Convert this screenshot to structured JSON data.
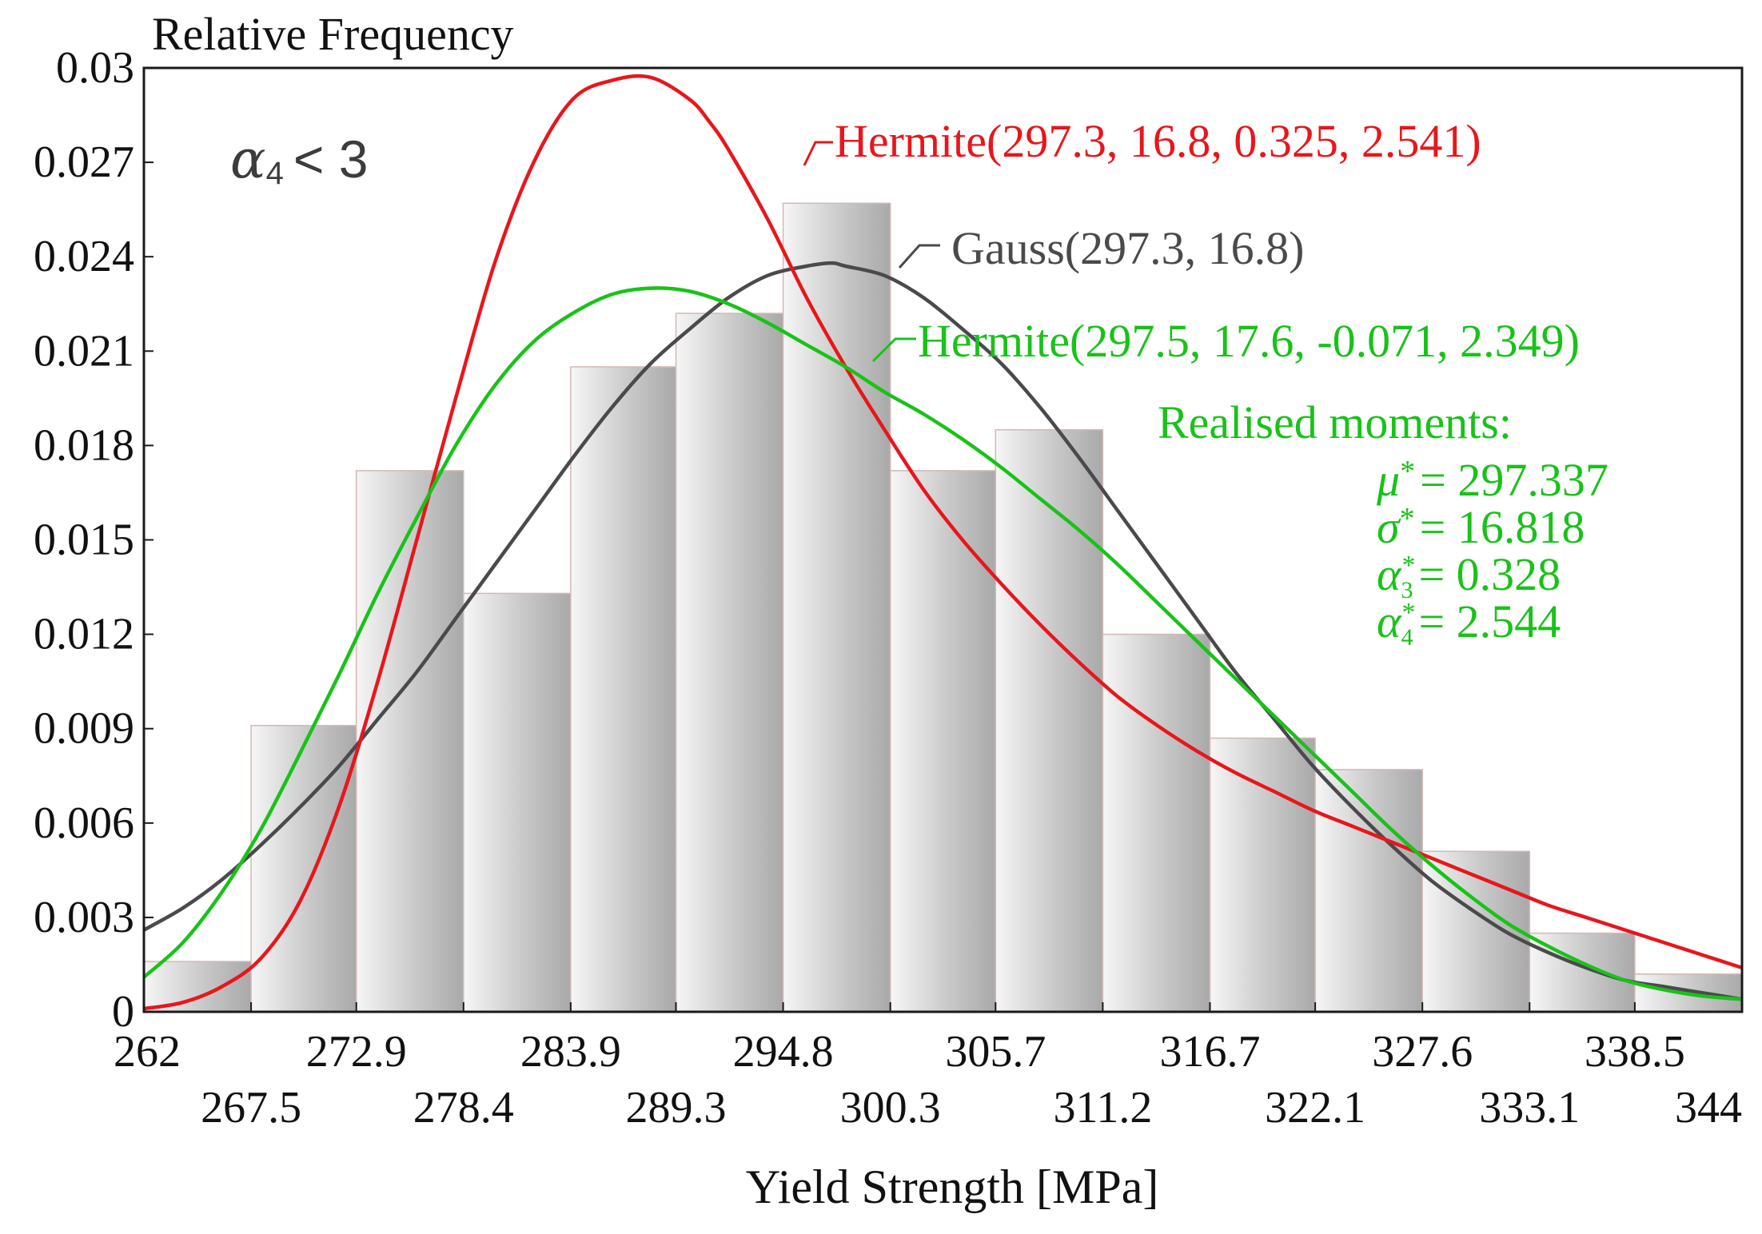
{
  "chart_data": {
    "type": "bar",
    "title": "",
    "ylabel": "Relative Frequency",
    "xlabel": "Yield Strength [MPa]",
    "xlim": [
      262,
      344
    ],
    "ylim": [
      0,
      0.03
    ],
    "y_ticks": [
      "0",
      "0.003",
      "0.006",
      "0.009",
      "0.012",
      "0.015",
      "0.018",
      "0.021",
      "0.024",
      "0.027",
      "0.03"
    ],
    "x_ticks_upper": [
      "262",
      "272.9",
      "283.9",
      "294.8",
      "305.7",
      "316.7",
      "327.6",
      "338.5"
    ],
    "x_ticks_lower": [
      "267.5",
      "278.4",
      "289.3",
      "300.3",
      "311.2",
      "322.1",
      "333.1",
      "344"
    ],
    "bin_edges": [
      262,
      267.5,
      272.9,
      278.4,
      283.9,
      289.3,
      294.8,
      300.3,
      305.7,
      311.2,
      316.7,
      322.1,
      327.6,
      333.1,
      338.5,
      344
    ],
    "bar_values": [
      0.0016,
      0.0091,
      0.0172,
      0.0133,
      0.0205,
      0.0222,
      0.0257,
      0.0172,
      0.0185,
      0.012,
      0.0087,
      0.0077,
      0.0051,
      0.0025,
      0.0012
    ],
    "series": [
      {
        "name": "Hermite(297.3, 16.8, 0.325, 2.541)",
        "color": "#e8161c",
        "x": [
          262,
          264,
          266,
          268,
          270,
          272,
          274,
          276,
          278,
          280,
          282,
          284,
          286,
          288,
          290,
          291,
          292,
          294,
          296,
          298,
          300,
          302,
          304,
          306,
          308,
          310,
          312,
          314,
          316,
          318,
          320,
          322,
          324,
          326,
          328,
          330,
          332,
          334,
          336,
          338,
          340,
          342,
          344
        ],
        "y": [
          0.0001,
          0.0003,
          0.0008,
          0.0017,
          0.0035,
          0.0065,
          0.0105,
          0.015,
          0.0195,
          0.0238,
          0.027,
          0.029,
          0.0296,
          0.0297,
          0.029,
          0.0283,
          0.0274,
          0.0252,
          0.0227,
          0.0205,
          0.0185,
          0.0166,
          0.015,
          0.0136,
          0.0123,
          0.0111,
          0.01,
          0.0091,
          0.0083,
          0.0076,
          0.007,
          0.0064,
          0.0059,
          0.0054,
          0.0049,
          0.0044,
          0.0039,
          0.0034,
          0.003,
          0.0026,
          0.0022,
          0.0018,
          0.0014
        ]
      },
      {
        "name": "Gauss(297.3, 16.8)",
        "color": "#4a4a4c",
        "x": [
          262,
          264,
          266,
          268,
          270,
          272,
          274,
          276,
          278,
          280,
          282,
          284,
          286,
          288,
          290,
          292,
          294,
          296,
          297.3,
          298,
          300,
          302,
          304,
          306,
          308,
          310,
          312,
          314,
          316,
          318,
          320,
          322,
          324,
          326,
          328,
          330,
          332,
          334,
          336,
          338,
          340,
          342,
          344
        ],
        "y": [
          0.0026,
          0.0033,
          0.0042,
          0.0053,
          0.0065,
          0.0078,
          0.0093,
          0.0108,
          0.0125,
          0.0142,
          0.0159,
          0.0176,
          0.0192,
          0.0206,
          0.0217,
          0.0227,
          0.0234,
          0.0237,
          0.0238,
          0.0237,
          0.0234,
          0.0227,
          0.0217,
          0.0206,
          0.0192,
          0.0176,
          0.0159,
          0.0142,
          0.0125,
          0.0108,
          0.0093,
          0.0078,
          0.0065,
          0.0053,
          0.0042,
          0.0033,
          0.0025,
          0.0019,
          0.0014,
          0.001,
          0.0008,
          0.0006,
          0.0004
        ]
      },
      {
        "name": "Hermite(297.5, 17.6, -0.071, 2.349)",
        "color": "#19c219",
        "x": [
          262,
          264,
          266,
          268,
          270,
          272,
          274,
          276,
          278,
          280,
          282,
          284,
          286,
          288,
          290,
          292,
          294,
          296,
          298,
          300,
          302,
          304,
          306,
          308,
          310,
          312,
          314,
          316,
          318,
          320,
          322,
          324,
          326,
          328,
          330,
          332,
          334,
          336,
          338,
          340,
          342,
          344
        ],
        "y": [
          0.0011,
          0.0022,
          0.0038,
          0.0058,
          0.0082,
          0.0107,
          0.0133,
          0.0157,
          0.018,
          0.0199,
          0.0213,
          0.0222,
          0.0228,
          0.023,
          0.0229,
          0.0225,
          0.0219,
          0.0212,
          0.0205,
          0.0197,
          0.019,
          0.0182,
          0.0173,
          0.0163,
          0.0153,
          0.0142,
          0.013,
          0.0118,
          0.0106,
          0.0094,
          0.0082,
          0.007,
          0.0058,
          0.0047,
          0.0037,
          0.0028,
          0.0021,
          0.0015,
          0.001,
          0.0007,
          0.0005,
          0.0004
        ]
      }
    ],
    "annotations": {
      "alpha_condition": {
        "symbol": "α",
        "subscript": "4",
        "text": "< 3"
      },
      "hermite_red_label": "Hermite(297.3, 16.8, 0.325, 2.541)",
      "gauss_label": "Gauss(297.3, 16.8)",
      "hermite_green_label": "Hermite(297.5, 17.6, -0.071, 2.349)",
      "realised_title": "Realised moments:",
      "moments": [
        {
          "symbol": "μ",
          "sub": "",
          "sup": "*",
          "value": "= 297.337"
        },
        {
          "symbol": "σ",
          "sub": "",
          "sup": "*",
          "value": "= 16.818"
        },
        {
          "symbol": "α",
          "sub": "3",
          "sup": "*",
          "value": "= 0.328"
        },
        {
          "symbol": "α",
          "sub": "4",
          "sup": "*",
          "value": "= 2.544"
        }
      ]
    }
  }
}
